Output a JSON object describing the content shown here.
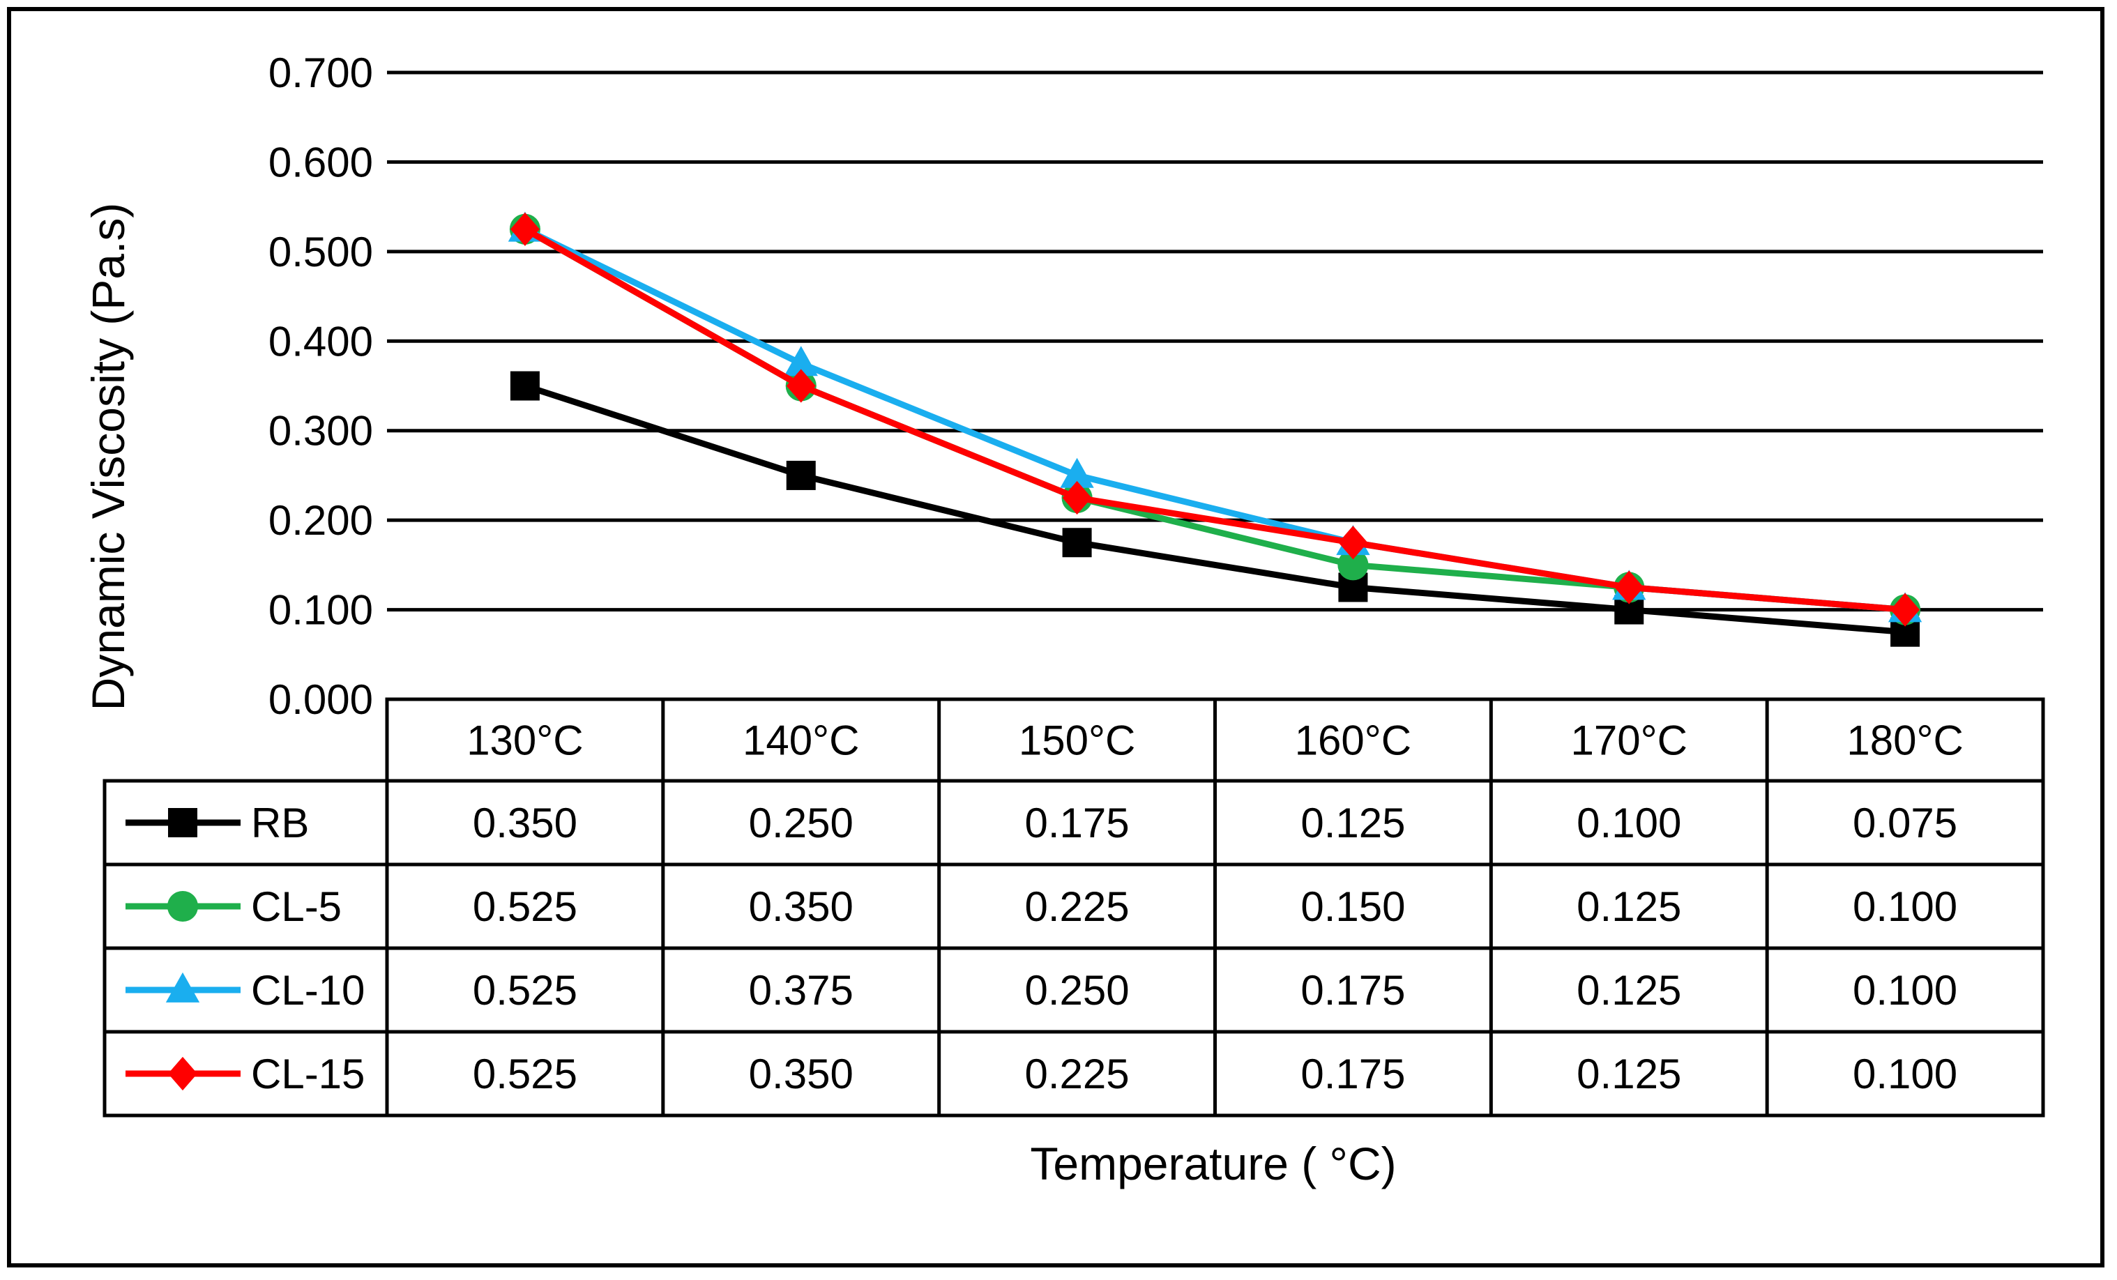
{
  "chart_data": {
    "type": "line",
    "title": "",
    "xlabel": "Temperature ( °C)",
    "ylabel": "Dynamic Viscosity (Pa.s)",
    "categories": [
      "130°C",
      "140°C",
      "150°C",
      "160°C",
      "170°C",
      "180°C"
    ],
    "ylim": [
      0,
      0.7
    ],
    "yticks": [
      0,
      0.1,
      0.2,
      0.3,
      0.4,
      0.5,
      0.6,
      0.7
    ],
    "ytick_labels": [
      "0.000",
      "0.100",
      "0.200",
      "0.300",
      "0.400",
      "0.500",
      "0.600",
      "0.700"
    ],
    "grid": true,
    "legend": "data-table",
    "series": [
      {
        "name": "RB",
        "color": "#000000",
        "marker": "square",
        "values": [
          0.35,
          0.25,
          0.175,
          0.125,
          0.1,
          0.075
        ],
        "labels": [
          "0.350",
          "0.250",
          "0.175",
          "0.125",
          "0.100",
          "0.075"
        ]
      },
      {
        "name": "CL-5",
        "color": "#1FAF4B",
        "marker": "circle",
        "values": [
          0.525,
          0.35,
          0.225,
          0.15,
          0.125,
          0.1
        ],
        "labels": [
          "0.525",
          "0.350",
          "0.225",
          "0.150",
          "0.125",
          "0.100"
        ]
      },
      {
        "name": "CL-10",
        "color": "#1AAEEF",
        "marker": "triangle",
        "values": [
          0.525,
          0.375,
          0.25,
          0.175,
          0.125,
          0.1
        ],
        "labels": [
          "0.525",
          "0.375",
          "0.250",
          "0.175",
          "0.125",
          "0.100"
        ]
      },
      {
        "name": "CL-15",
        "color": "#FF0000",
        "marker": "diamond",
        "values": [
          0.525,
          0.35,
          0.225,
          0.175,
          0.125,
          0.1
        ],
        "labels": [
          "0.525",
          "0.350",
          "0.225",
          "0.175",
          "0.125",
          "0.100"
        ]
      }
    ]
  }
}
